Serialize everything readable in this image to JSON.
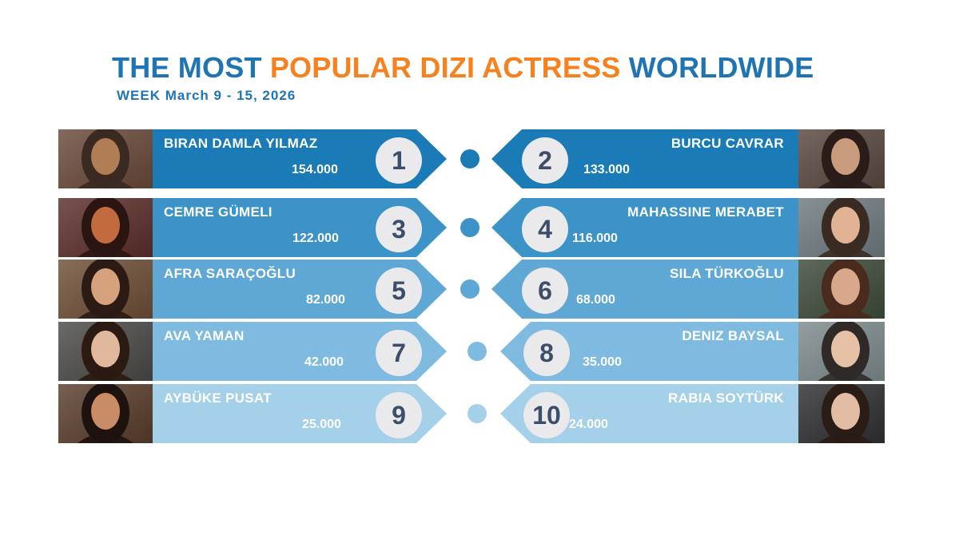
{
  "title": {
    "part1": "THE MOST",
    "part2": "POPULAR DIZI ACTRESS",
    "part3": "WORLDWIDE"
  },
  "subtitle": "WEEK March 9 - 15, 2026",
  "colors": {
    "title_blue": "#1f75b3",
    "title_orange": "#f5811f",
    "tiers": [
      "#1b7bb6",
      "#3c93c8",
      "#5fa8d6",
      "#7fbbe1",
      "#a4d0ea"
    ]
  },
  "rows": [
    {
      "left": {
        "rank": "1",
        "name": "BIRAN DAMLA YILMAZ",
        "value": "154.000"
      },
      "right": {
        "rank": "2",
        "name": "BURCU CAVRAR",
        "value": "133.000"
      }
    },
    {
      "left": {
        "rank": "3",
        "name": "CEMRE GÜMELI",
        "value": "122.000"
      },
      "right": {
        "rank": "4",
        "name": "MAHASSINE MERABET",
        "value": "116.000"
      }
    },
    {
      "left": {
        "rank": "5",
        "name": "AFRA SARAÇOĞLU",
        "value": "82.000"
      },
      "right": {
        "rank": "6",
        "name": "SILA TÜRKOĞLU",
        "value": "68.000"
      }
    },
    {
      "left": {
        "rank": "7",
        "name": "AVA YAMAN",
        "value": "42.000"
      },
      "right": {
        "rank": "8",
        "name": "DENIZ BAYSAL",
        "value": "35.000"
      }
    },
    {
      "left": {
        "rank": "9",
        "name": "AYBÜKE PUSAT",
        "value": "25.000"
      },
      "right": {
        "rank": "10",
        "name": "RABIA SOYTÜRK",
        "value": "24.000"
      }
    }
  ]
}
